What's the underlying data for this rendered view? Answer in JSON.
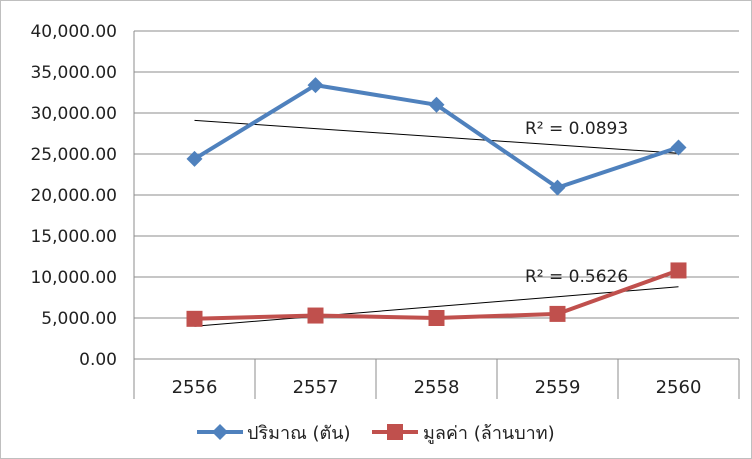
{
  "chart_data": {
    "type": "line",
    "categories": [
      "2556",
      "2557",
      "2558",
      "2559",
      "2560"
    ],
    "series": [
      {
        "name": "ปริมาณ (ตัน)",
        "values": [
          24400,
          33400,
          31000,
          20900,
          25800
        ],
        "color": "#4F81BD",
        "marker": "diamond",
        "trend": [
          29100,
          28100,
          27100,
          26100,
          25100
        ],
        "r2_label": "R² = 0.0893"
      },
      {
        "name": "มูลค่า (ล้านบาท)",
        "values": [
          4900,
          5300,
          5000,
          5500,
          10800
        ],
        "color": "#C0504D",
        "marker": "square",
        "trend": [
          4000,
          5200,
          6400,
          7600,
          8800
        ],
        "r2_label": "R² = 0.5626"
      }
    ],
    "ylim": [
      0,
      40000
    ],
    "yticks": [
      "0.00",
      "5,000.00",
      "10,000.00",
      "15,000.00",
      "20,000.00",
      "25,000.00",
      "30,000.00",
      "35,000.00",
      "40,000.00"
    ],
    "ytick_values": [
      0,
      5000,
      10000,
      15000,
      20000,
      25000,
      30000,
      35000,
      40000
    ],
    "grid": true,
    "legend_position": "bottom"
  }
}
